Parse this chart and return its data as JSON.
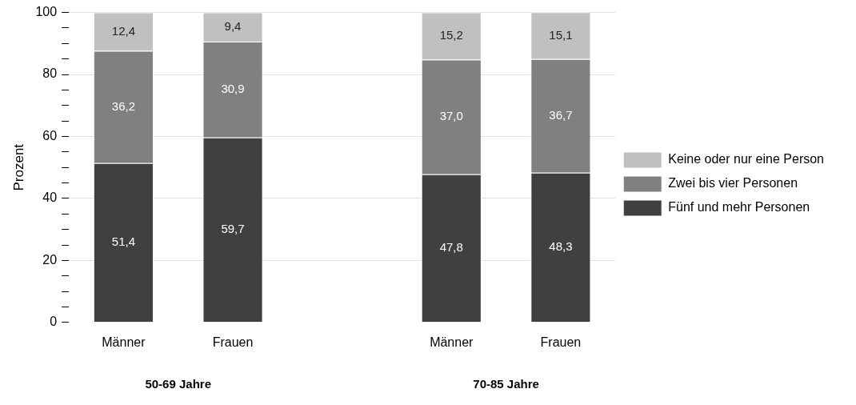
{
  "chart_data": {
    "type": "bar",
    "stacked": true,
    "ylabel": "Prozent",
    "categories": [
      "Männer",
      "Frauen",
      null,
      "Männer",
      "Frauen"
    ],
    "series": [
      {
        "name": "Fünf und mehr Personen",
        "color": "#404040",
        "values": [
          51.4,
          59.7,
          null,
          47.8,
          48.3
        ],
        "value_labels": [
          "51,4",
          "59,7",
          null,
          "47,8",
          "48,3"
        ]
      },
      {
        "name": "Zwei bis vier Personen",
        "color": "#808080",
        "values": [
          36.2,
          30.9,
          null,
          37.0,
          36.7
        ],
        "value_labels": [
          "36,2",
          "30,9",
          null,
          "37,0",
          "36,7"
        ]
      },
      {
        "name": "Keine oder nur eine Person",
        "color": "#c0c0c0",
        "values": [
          12.4,
          9.4,
          null,
          15.2,
          15.1
        ],
        "value_labels": [
          "12,4",
          "9,4",
          null,
          "15,2",
          "15,1"
        ]
      }
    ],
    "ylim": [
      0,
      100
    ],
    "yticks": [
      0,
      {
        "value": 5,
        "label": null
      },
      {
        "value": 10,
        "label": null
      },
      {
        "value": 15,
        "label": null
      },
      20,
      {
        "value": 25,
        "label": null
      },
      {
        "value": 30,
        "label": null
      },
      {
        "value": 35,
        "label": null
      },
      40,
      {
        "value": 45,
        "label": null
      },
      {
        "value": 50,
        "label": null
      },
      {
        "value": 55,
        "label": null
      },
      60,
      {
        "value": 65,
        "label": null
      },
      {
        "value": 70,
        "label": null
      },
      {
        "value": 75,
        "label": null
      },
      80,
      {
        "value": 85,
        "label": null
      },
      {
        "value": 90,
        "label": null
      },
      {
        "value": 95,
        "label": null
      },
      100
    ],
    "grid": "y",
    "legend": "right",
    "annotations": [
      "50-69 Jahre",
      "70-85 Jahre"
    ]
  }
}
